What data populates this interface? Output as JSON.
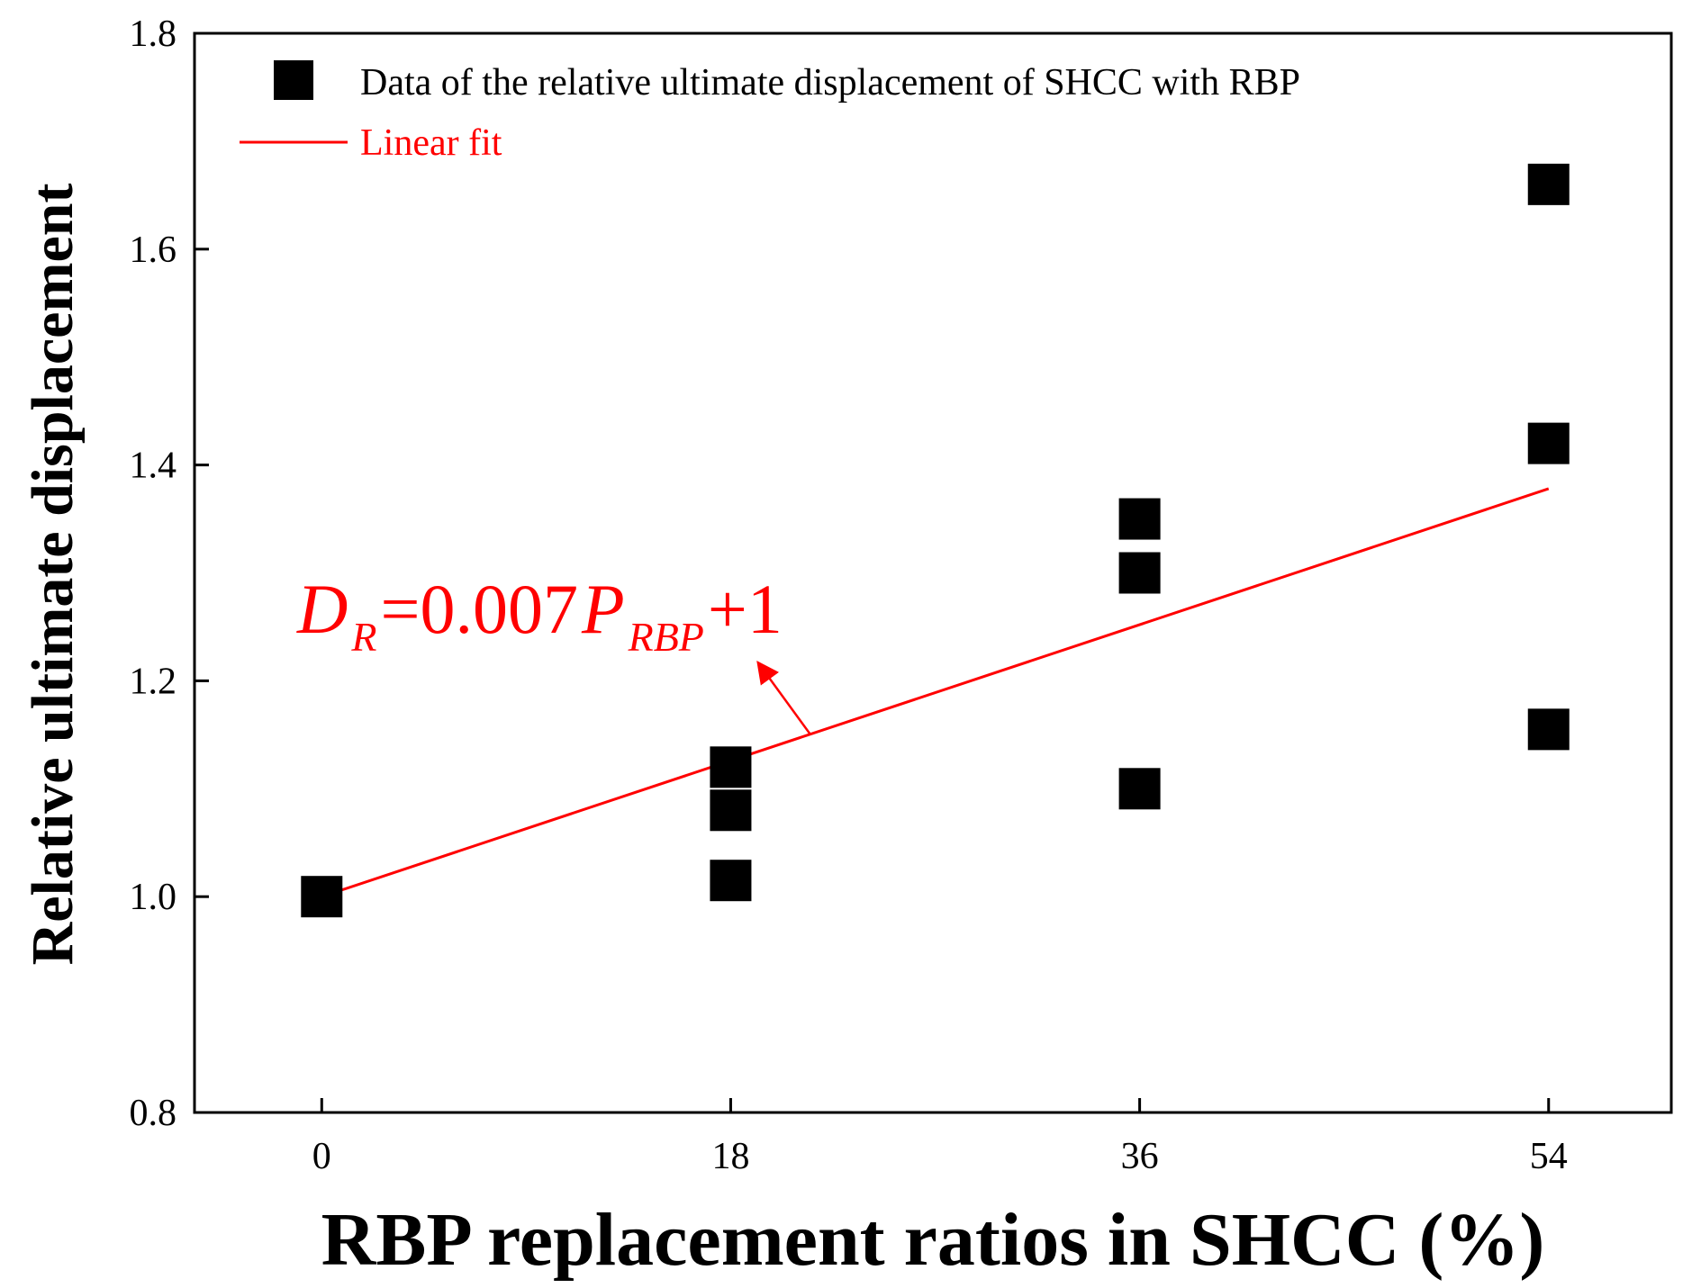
{
  "chart_data": {
    "type": "scatter",
    "xlabel": "RBP replacement ratios in SHCC (%)",
    "ylabel": "Relative ultimate displacement",
    "xlim": [
      -5.6,
      59.4
    ],
    "ylim": [
      0.8,
      1.8
    ],
    "xticks": [
      0,
      18,
      36,
      54
    ],
    "yticks": [
      0.8,
      1.0,
      1.2,
      1.4,
      1.6,
      1.8
    ],
    "xtick_labels": [
      "0",
      "18",
      "36",
      "54"
    ],
    "ytick_labels": [
      "0.8",
      "1.0",
      "1.2",
      "1.4",
      "1.6",
      "1.8"
    ],
    "series": [
      {
        "name": "Data of the relative ultimate displacement of SHCC with RBP",
        "kind": "scatter",
        "marker": "square",
        "color": "#000000",
        "points": [
          [
            0,
            1.0
          ],
          [
            18,
            1.12
          ],
          [
            18,
            1.08
          ],
          [
            18,
            1.015
          ],
          [
            36,
            1.35
          ],
          [
            36,
            1.3
          ],
          [
            36,
            1.1
          ],
          [
            54,
            1.66
          ],
          [
            54,
            1.42
          ],
          [
            54,
            1.155
          ]
        ]
      },
      {
        "name": "Linear fit",
        "kind": "line",
        "color": "#ff0000",
        "slope": 0.007,
        "intercept": 1.0,
        "x_range": [
          0,
          54
        ]
      }
    ],
    "annotation": {
      "color": "#ff0000",
      "eq_D": "D",
      "eq_R": "R",
      "eq_mid": "=0.007",
      "eq_P": "P",
      "eq_RBP": "RBP",
      "eq_end": "+1",
      "arrow_from_x": 21.5,
      "arrow_to_x": 19.2,
      "arrow_to_y": 1.217
    },
    "legend_position": "top-left",
    "grid": false
  }
}
